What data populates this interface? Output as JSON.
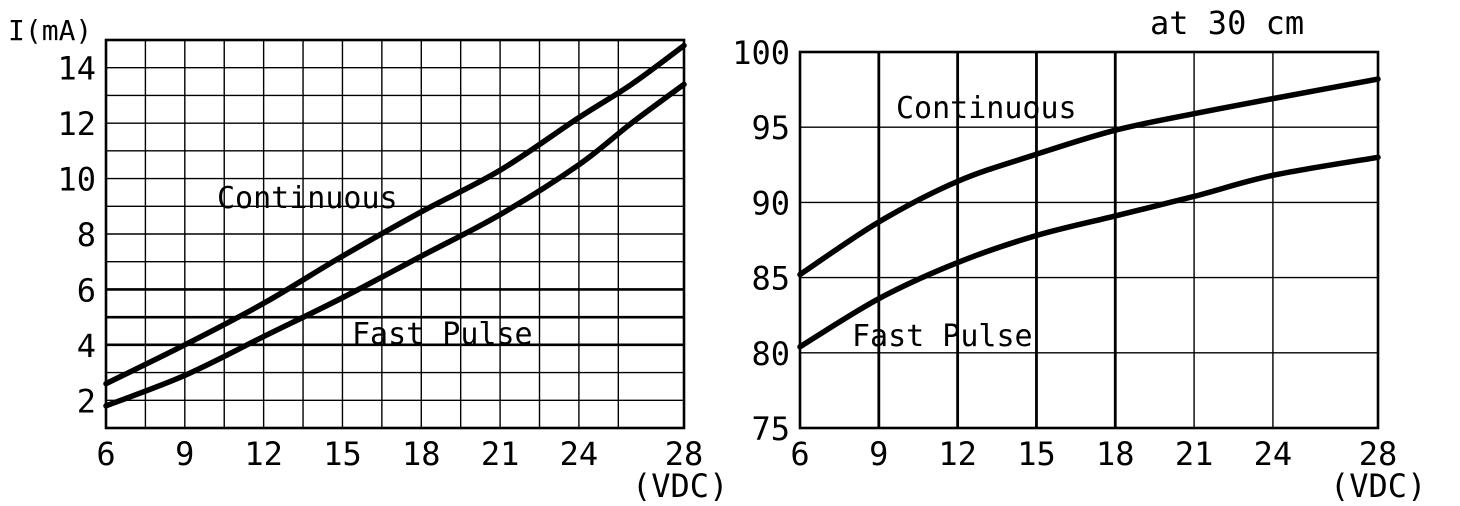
{
  "chart_data": [
    {
      "type": "line",
      "title": "",
      "ylabel": "I(mA)",
      "xlabel": "(VDC)",
      "xlim": [
        6,
        28
      ],
      "ylim": [
        1,
        15
      ],
      "xticks": [
        6,
        9,
        12,
        15,
        18,
        21,
        24,
        28
      ],
      "yticks": [
        2,
        4,
        6,
        8,
        10,
        12,
        14
      ],
      "grid": true,
      "series": [
        {
          "name": "Continuous",
          "x": [
            6,
            9,
            12,
            15,
            18,
            21,
            24,
            26,
            28
          ],
          "y": [
            2.6,
            4.0,
            5.5,
            7.2,
            8.8,
            10.3,
            12.2,
            13.4,
            14.8
          ]
        },
        {
          "name": "Fast Pulse",
          "x": [
            6,
            9,
            12,
            15,
            18,
            21,
            24,
            26,
            28
          ],
          "y": [
            1.8,
            2.9,
            4.3,
            5.7,
            7.2,
            8.7,
            10.5,
            12.0,
            13.4
          ]
        }
      ],
      "annotations": [
        "Continuous",
        "Fast Pulse"
      ]
    },
    {
      "type": "line",
      "title": "at 30 cm",
      "ylabel": "",
      "xlabel": "(VDC)",
      "xlim": [
        6,
        28
      ],
      "ylim": [
        75,
        100
      ],
      "xticks": [
        6,
        9,
        12,
        15,
        18,
        21,
        24,
        28
      ],
      "yticks": [
        75,
        80,
        85,
        90,
        95,
        100
      ],
      "grid": true,
      "series": [
        {
          "name": "Continuous",
          "x": [
            6,
            9,
            12,
            15,
            18,
            21,
            24,
            28
          ],
          "y": [
            85.2,
            88.7,
            91.4,
            93.2,
            94.8,
            95.9,
            96.9,
            98.2
          ]
        },
        {
          "name": "Fast Pulse",
          "x": [
            6,
            9,
            12,
            15,
            18,
            21,
            24,
            28
          ],
          "y": [
            80.4,
            83.6,
            86.0,
            87.8,
            89.1,
            90.4,
            91.8,
            93.0
          ]
        }
      ],
      "annotations": [
        "Continuous",
        "Fast Pulse"
      ]
    }
  ]
}
